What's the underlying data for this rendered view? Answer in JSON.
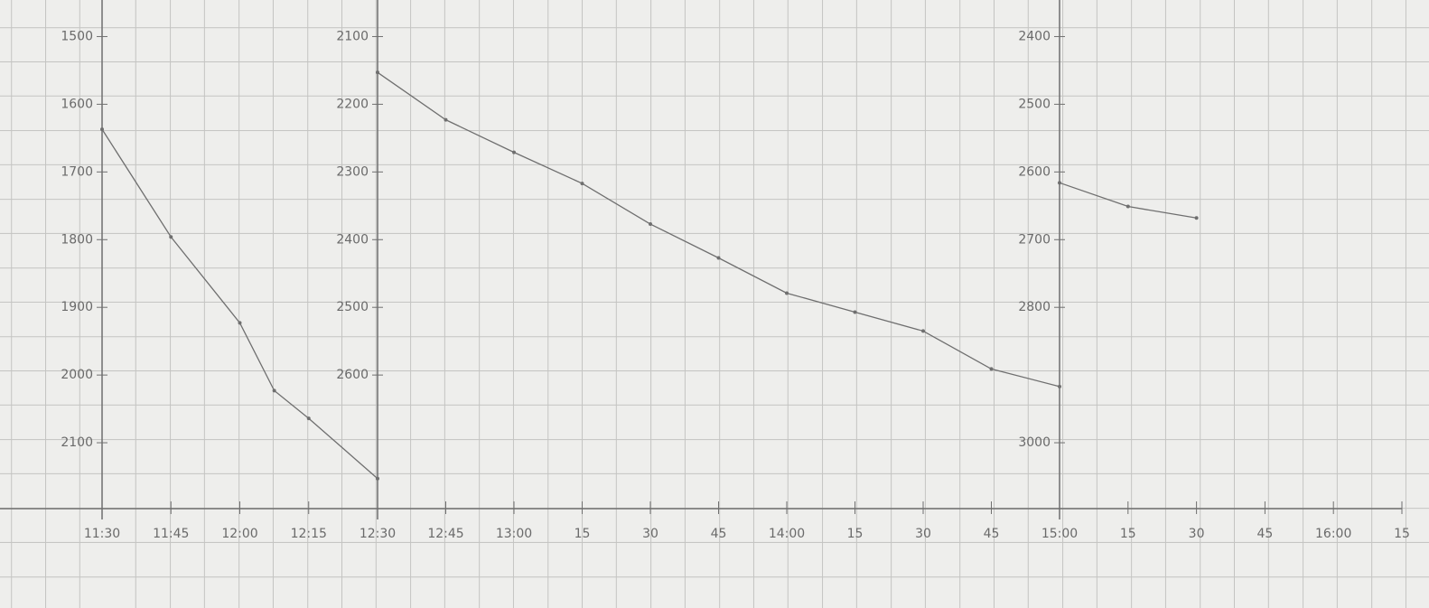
{
  "chart_data": [
    {
      "type": "line",
      "color": "#6f6f6f",
      "x": [
        690,
        705,
        720,
        727.5,
        735,
        750
      ],
      "values": [
        1637,
        1796,
        1923,
        2023,
        2064,
        2153
      ],
      "xlim": [
        690,
        750
      ],
      "xticks": [
        {
          "value": 690,
          "label": "11:30"
        },
        {
          "value": 705,
          "label": "11:45"
        },
        {
          "value": 720,
          "label": "12:00"
        },
        {
          "value": 735,
          "label": "12:15"
        },
        {
          "value": 750,
          "label": "12:30"
        }
      ],
      "ylim": [
        2200,
        1450
      ],
      "yticks": [
        1500,
        1600,
        1700,
        1800,
        1900,
        2000,
        2100
      ]
    },
    {
      "type": "line",
      "color": "#6f6f6f",
      "x": [
        750,
        765,
        780,
        795,
        810,
        825,
        840,
        855,
        870,
        885,
        900
      ],
      "values": [
        2153,
        2223,
        2271,
        2317,
        2377,
        2427,
        2479,
        2507,
        2535,
        2591,
        2617
      ],
      "xlim": [
        750,
        900
      ],
      "xticks": [
        {
          "value": 765,
          "label": "12:45"
        },
        {
          "value": 780,
          "label": "13:00"
        },
        {
          "value": 795,
          "label": "15"
        },
        {
          "value": 810,
          "label": "30"
        },
        {
          "value": 825,
          "label": "45"
        },
        {
          "value": 840,
          "label": "14:00"
        },
        {
          "value": 855,
          "label": "15"
        },
        {
          "value": 870,
          "label": "30"
        },
        {
          "value": 885,
          "label": "45"
        },
        {
          "value": 900,
          "label": "15:00"
        }
      ],
      "ylim": [
        2800,
        2050
      ],
      "yticks": [
        2100,
        2200,
        2300,
        2400,
        2500,
        2600
      ]
    },
    {
      "type": "line",
      "color": "#6f6f6f",
      "x": [
        900,
        915,
        930
      ],
      "values": [
        2616,
        2651,
        2668
      ],
      "xlim": [
        900,
        975
      ],
      "xticks": [
        {
          "value": 915,
          "label": "15"
        },
        {
          "value": 930,
          "label": "30"
        },
        {
          "value": 945,
          "label": "45"
        },
        {
          "value": 960,
          "label": "16:00"
        },
        {
          "value": 975,
          "label": "15"
        }
      ],
      "ylim": [
        3100,
        2350
      ],
      "yticks": [
        2400,
        2500,
        2600,
        2700,
        2800,
        3000
      ]
    }
  ]
}
